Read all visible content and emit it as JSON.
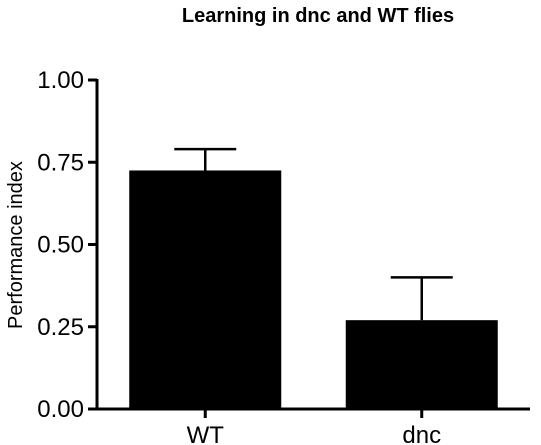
{
  "chart_data": {
    "type": "bar",
    "title": "Learning in dnc and WT flies",
    "xlabel": "",
    "ylabel": "Performance index",
    "categories": [
      "WT",
      "dnc"
    ],
    "values": [
      0.725,
      0.27
    ],
    "error_upper": [
      0.79,
      0.4
    ],
    "ylim": [
      0,
      1
    ],
    "yticks": [
      0,
      0.25,
      0.5,
      0.75,
      1.0
    ],
    "ytick_labels": [
      "0.00",
      "0.25",
      "0.50",
      "0.75",
      "1.00"
    ],
    "bar_color": "#000000",
    "grid": false,
    "legend": "none"
  }
}
